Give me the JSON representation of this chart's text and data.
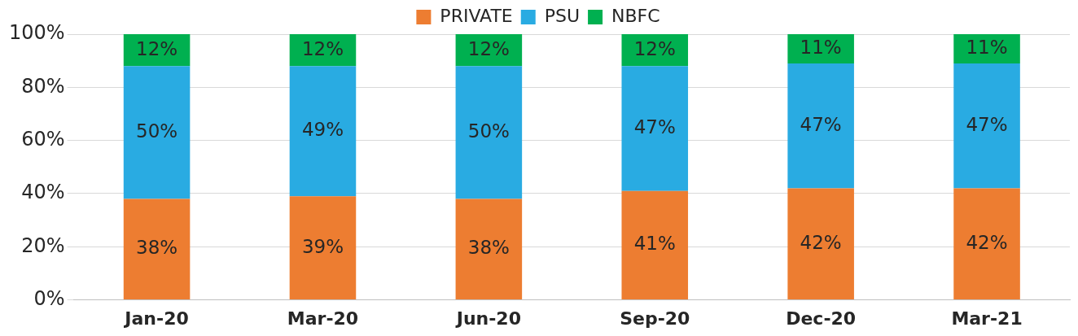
{
  "chart_data": {
    "type": "bar",
    "stacked": true,
    "categories": [
      "Jan-20",
      "Mar-20",
      "Jun-20",
      "Sep-20",
      "Dec-20",
      "Mar-21"
    ],
    "series": [
      {
        "name": "PRIVATE",
        "color": "#ed7d31",
        "values": [
          38,
          39,
          38,
          41,
          42,
          42
        ],
        "value_labels": [
          "38%",
          "39%",
          "38%",
          "41%",
          "42%",
          "42%"
        ]
      },
      {
        "name": "PSU",
        "color": "#29abe2",
        "values": [
          50,
          49,
          50,
          47,
          47,
          47
        ],
        "value_labels": [
          "50%",
          "49%",
          "50%",
          "47%",
          "47%",
          "47%"
        ]
      },
      {
        "name": "NBFC",
        "color": "#00b050",
        "values": [
          12,
          12,
          12,
          12,
          11,
          11
        ],
        "value_labels": [
          "12%",
          "12%",
          "12%",
          "12%",
          "11%",
          "11%"
        ]
      }
    ],
    "ylim": [
      0,
      100
    ],
    "yticks": [
      {
        "value": 0,
        "label": "0%"
      },
      {
        "value": 20,
        "label": "20%"
      },
      {
        "value": 40,
        "label": "40%"
      },
      {
        "value": 60,
        "label": "60%"
      },
      {
        "value": 80,
        "label": "80%"
      },
      {
        "value": 100,
        "label": "100%"
      }
    ],
    "grid": "y",
    "legend": "top"
  }
}
